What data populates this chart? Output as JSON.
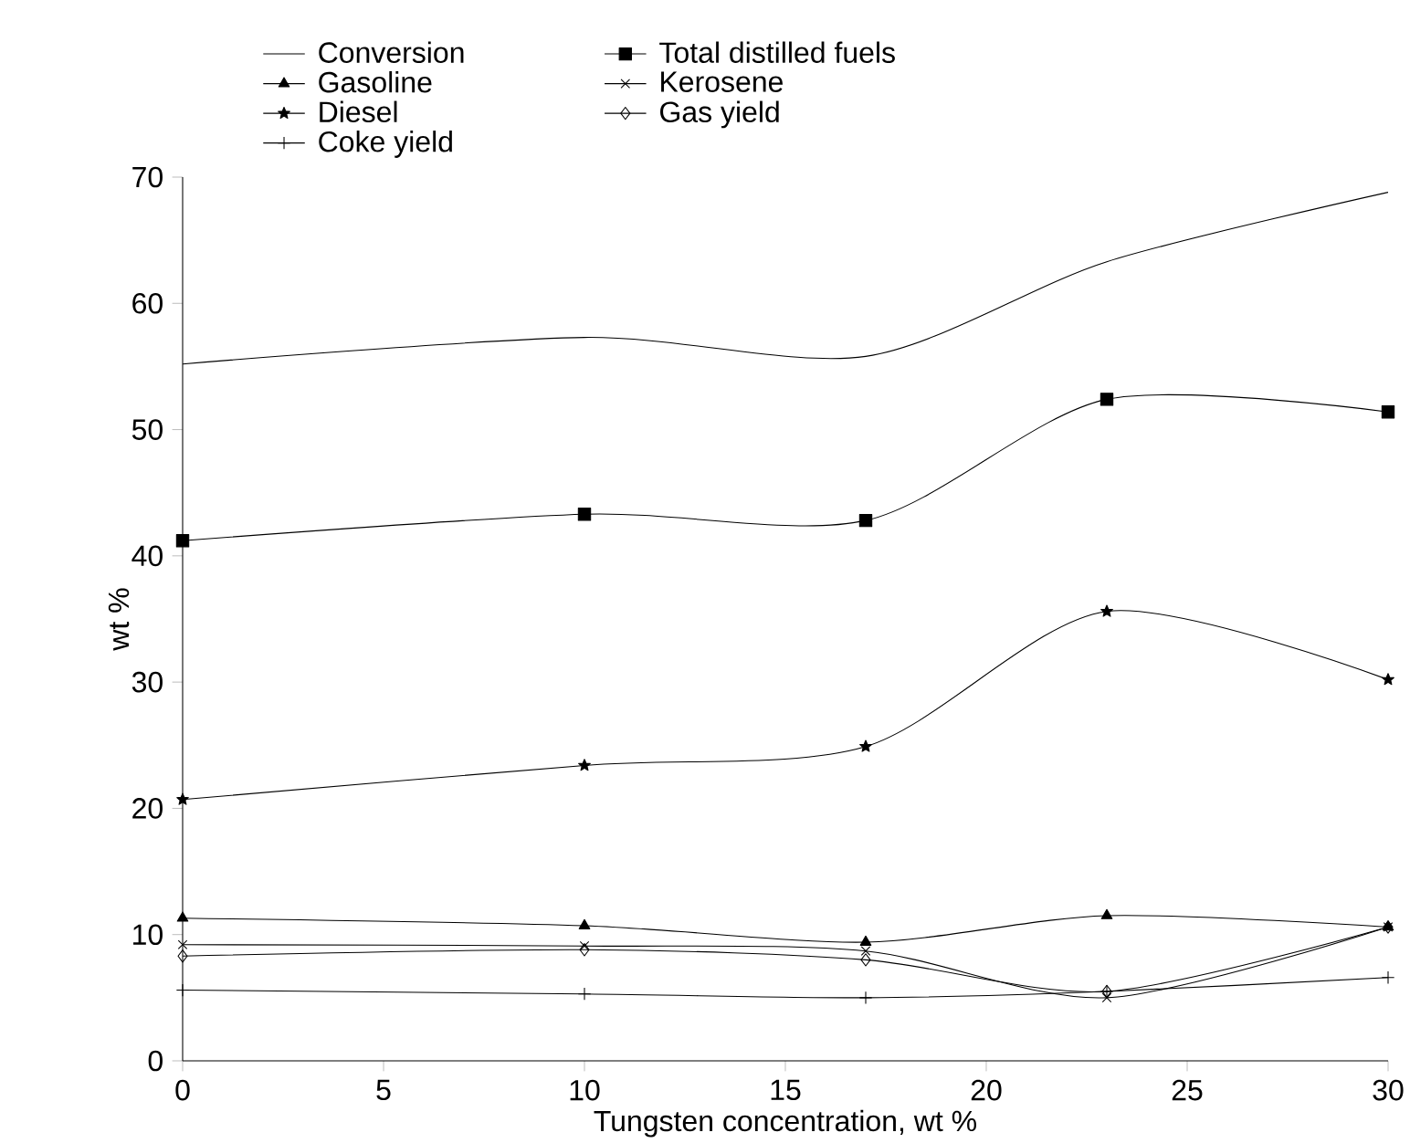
{
  "chart_data": {
    "type": "line",
    "xlabel": "Tungsten concentration, wt %",
    "ylabel": "wt %",
    "x": [
      0,
      10,
      17,
      23,
      30
    ],
    "xlim": [
      0,
      30
    ],
    "ylim": [
      0,
      70
    ],
    "xticks": [
      0,
      5,
      10,
      15,
      20,
      25,
      30
    ],
    "yticks": [
      0,
      10,
      20,
      30,
      40,
      50,
      60,
      70
    ],
    "legend": "top",
    "line_style": "solid",
    "series": [
      {
        "name": "Conversion",
        "color": "#000000",
        "marker": "none",
        "values": [
          55.2,
          57.3,
          55.8,
          63.3,
          68.8
        ]
      },
      {
        "name": "Total distilled fuels",
        "color": "#000000",
        "marker": "square",
        "values": [
          41.2,
          43.3,
          42.8,
          52.4,
          51.4
        ]
      },
      {
        "name": "Gasoline",
        "color": "#000000",
        "marker": "triangle",
        "values": [
          11.3,
          10.7,
          9.4,
          11.5,
          10.6
        ]
      },
      {
        "name": "Kerosene",
        "color": "#000000",
        "marker": "cross",
        "values": [
          9.2,
          9.1,
          8.7,
          5.0,
          10.6
        ]
      },
      {
        "name": "Diesel",
        "color": "#000000",
        "marker": "star",
        "values": [
          20.7,
          23.4,
          24.9,
          35.6,
          30.2
        ]
      },
      {
        "name": "Gas yield",
        "color": "#000000",
        "marker": "diamond",
        "values": [
          8.3,
          8.8,
          8.0,
          5.5,
          10.6
        ]
      },
      {
        "name": "Coke yield",
        "color": "#000000",
        "marker": "plus",
        "values": [
          5.6,
          5.3,
          5.0,
          5.5,
          6.6
        ]
      }
    ]
  }
}
